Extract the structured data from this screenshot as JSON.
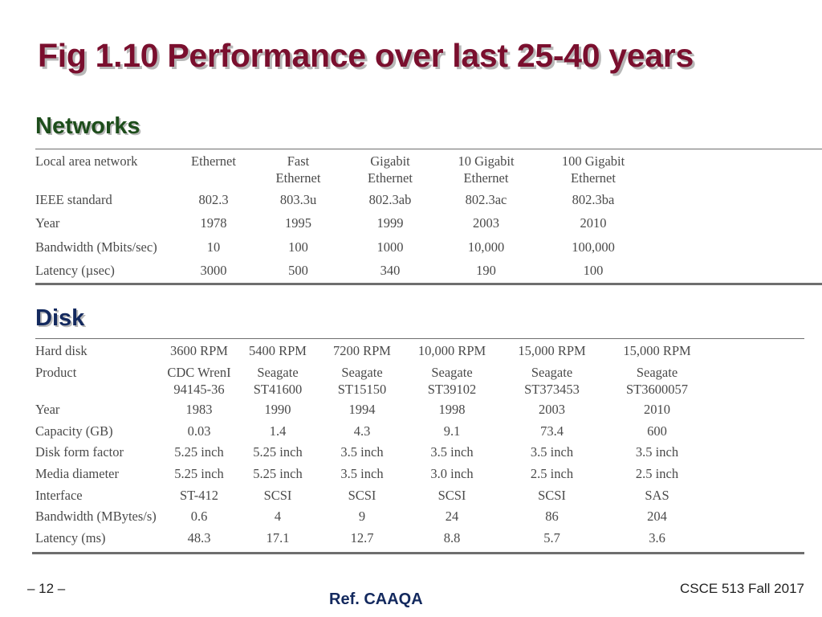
{
  "title": "Fig 1.10 Performance over last 25-40 years",
  "networks": {
    "heading": "Networks",
    "header": [
      "Local area network",
      "Ethernet",
      "Fast\nEthernet",
      "Gigabit\nEthernet",
      "10 Gigabit\nEthernet",
      "100 Gigabit\nEthernet"
    ],
    "rows": [
      [
        "IEEE standard",
        "802.3",
        "803.3u",
        "802.3ab",
        "802.3ac",
        "802.3ba"
      ],
      [
        "Year",
        "1978",
        "1995",
        "1999",
        "2003",
        "2010"
      ],
      [
        "Bandwidth (Mbits/sec)",
        "10",
        "100",
        "1000",
        "10,000",
        "100,000"
      ],
      [
        "Latency (µsec)",
        "3000",
        "500",
        "340",
        "190",
        "100"
      ]
    ]
  },
  "disk": {
    "heading": "Disk",
    "header": [
      "Hard disk",
      "3600 RPM",
      "5400 RPM",
      "7200 RPM",
      "10,000 RPM",
      "15,000 RPM",
      "15,000 RPM"
    ],
    "product": [
      "Product",
      "CDC WrenI\n94145-36",
      "Seagate\nST41600",
      "Seagate\nST15150",
      "Seagate\nST39102",
      "Seagate\nST373453",
      "Seagate\nST3600057"
    ],
    "rows": [
      [
        "Year",
        "1983",
        "1990",
        "1994",
        "1998",
        "2003",
        "2010"
      ],
      [
        "Capacity (GB)",
        "0.03",
        "1.4",
        "4.3",
        "9.1",
        "73.4",
        "600"
      ],
      [
        "Disk form factor",
        "5.25 inch",
        "5.25 inch",
        "3.5 inch",
        "3.5 inch",
        "3.5 inch",
        "3.5 inch"
      ],
      [
        "Media diameter",
        "5.25 inch",
        "5.25 inch",
        "3.5 inch",
        "3.0 inch",
        "2.5 inch",
        "2.5 inch"
      ],
      [
        "Interface",
        "ST-412",
        "SCSI",
        "SCSI",
        "SCSI",
        "SCSI",
        "SAS"
      ],
      [
        "Bandwidth (MBytes/s)",
        "0.6",
        "4",
        "9",
        "24",
        "86",
        "204"
      ],
      [
        "Latency (ms)",
        "48.3",
        "17.1",
        "12.7",
        "8.8",
        "5.7",
        "3.6"
      ]
    ]
  },
  "footer": {
    "page": "– 12 –",
    "ref": "Ref. CAAQA",
    "course": "CSCE 513 Fall 2017"
  },
  "colors": {
    "title": "#7a0f2e",
    "networks_heading": "#1d4d1b",
    "disk_heading": "#13295e",
    "table_text": "#4a4a4a",
    "rules": "#6e6e6e"
  }
}
